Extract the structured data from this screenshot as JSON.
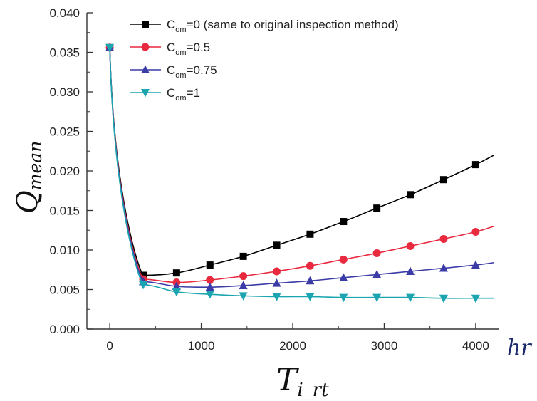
{
  "chart_data": {
    "type": "line",
    "title": "",
    "ylabel": {
      "main": "Q",
      "sub": "mean"
    },
    "xlabel": {
      "main": "T",
      "sub": "i_rt"
    },
    "xunit": "hr",
    "xlim": [
      -250,
      4250
    ],
    "ylim": [
      0.0,
      0.04
    ],
    "xticks": [
      0,
      1000,
      2000,
      3000,
      4000
    ],
    "yticks": [
      0.0,
      0.005,
      0.01,
      0.015,
      0.02,
      0.025,
      0.03,
      0.035,
      0.04
    ],
    "ytick_labels": [
      "0.000",
      "0.005",
      "0.010",
      "0.015",
      "0.020",
      "0.025",
      "0.030",
      "0.035",
      "0.040"
    ],
    "legend_position": "top-right",
    "x": [
      0,
      365,
      730,
      1095,
      1460,
      1825,
      2190,
      2555,
      2920,
      3285,
      3650,
      4000
    ],
    "series": [
      {
        "name_prefix": "C",
        "name_sub": "om",
        "name_suffix": "=0 (same to original inspection method)",
        "color": "#000000",
        "marker": "square",
        "values": [
          0.0356,
          0.0068,
          0.0071,
          0.0081,
          0.0092,
          0.0106,
          0.012,
          0.0136,
          0.0153,
          0.017,
          0.0189,
          0.0208
        ],
        "end": [
          4200,
          0.022
        ]
      },
      {
        "name_prefix": "C",
        "name_sub": "om",
        "name_suffix": "=0.5",
        "color": "#e8293e",
        "marker": "circle",
        "values": [
          0.0356,
          0.0063,
          0.0059,
          0.0062,
          0.0067,
          0.0073,
          0.008,
          0.0088,
          0.0096,
          0.0105,
          0.0114,
          0.0123
        ],
        "end": [
          4200,
          0.013
        ]
      },
      {
        "name_prefix": "C",
        "name_sub": "om",
        "name_suffix": "=0.75",
        "color": "#3c3ca8",
        "marker": "triangle-up",
        "values": [
          0.0356,
          0.006,
          0.0054,
          0.0053,
          0.0055,
          0.0058,
          0.0061,
          0.0065,
          0.0069,
          0.0073,
          0.0077,
          0.0081
        ],
        "end": [
          4200,
          0.0084
        ]
      },
      {
        "name_prefix": "C",
        "name_sub": "om",
        "name_suffix": "=1",
        "color": "#1aa5b0",
        "marker": "triangle-down",
        "values": [
          0.0356,
          0.0056,
          0.0047,
          0.0044,
          0.0042,
          0.0041,
          0.0041,
          0.004,
          0.004,
          0.004,
          0.0039,
          0.0039
        ],
        "end": [
          4200,
          0.0039
        ]
      }
    ]
  }
}
